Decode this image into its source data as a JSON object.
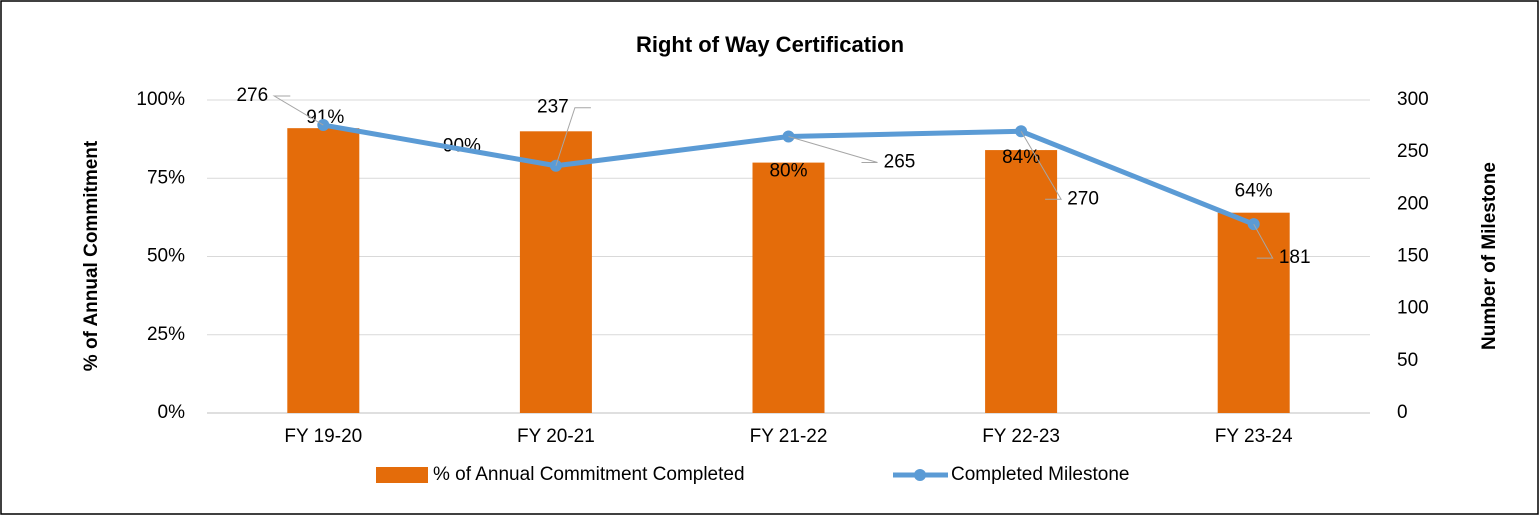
{
  "chart_data": {
    "type": "bar",
    "title": "Right of Way Certification",
    "y_label": "% of Annual Commitment",
    "y2_label": "Number of Milestone",
    "categories": [
      "FY 19-20",
      "FY 20-21",
      "FY 21-22",
      "FY 22-23",
      "FY 23-24"
    ],
    "series": [
      {
        "name": "% of Annual Commitment Completed",
        "type": "bar",
        "color": "#e46c0a",
        "axis": "y",
        "values": [
          91,
          90,
          80,
          84,
          64
        ],
        "value_labels": [
          "91%",
          "90%",
          "80%",
          "84%",
          "64%"
        ]
      },
      {
        "name": "Completed Milestone",
        "type": "line",
        "color": "#5b9bd5",
        "axis": "y2",
        "values": [
          276,
          237,
          265,
          270,
          181
        ]
      }
    ],
    "ylim": [
      0,
      100
    ],
    "yticks": [
      {
        "value": 0,
        "label": "0%"
      },
      {
        "value": 25,
        "label": "25%"
      },
      {
        "value": 50,
        "label": "50%"
      },
      {
        "value": 75,
        "label": "75%"
      },
      {
        "value": 100,
        "label": "100%"
      }
    ],
    "y2lim": [
      0,
      300
    ],
    "y2ticks": [
      0,
      50,
      100,
      150,
      200,
      250,
      300
    ],
    "grid": true,
    "legend": "bottom"
  }
}
